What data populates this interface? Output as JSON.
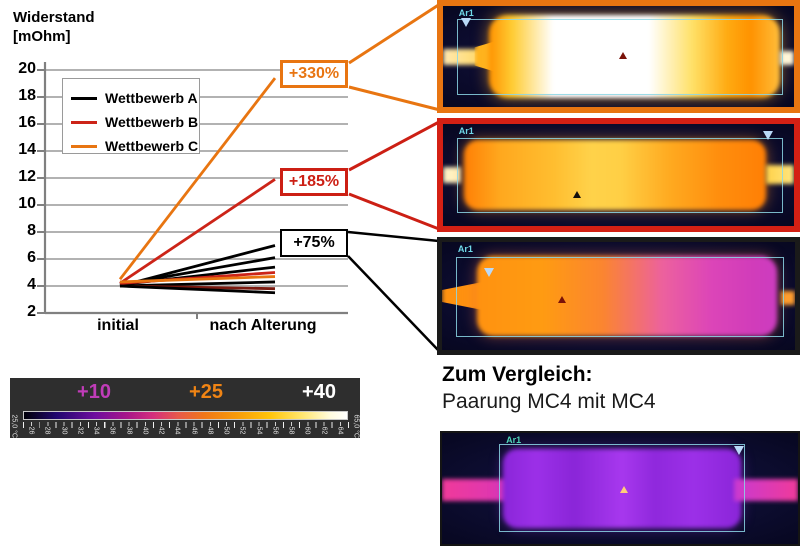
{
  "chart_data": {
    "type": "line",
    "title": "Widerstand [mOhm]",
    "title_lines": [
      "Widerstand",
      "[mOhm]"
    ],
    "categories": [
      "initial",
      "nach Alterung"
    ],
    "ylim": [
      2,
      20
    ],
    "yticks": [
      2,
      4,
      6,
      8,
      10,
      12,
      14,
      16,
      18,
      20
    ],
    "grid": true,
    "legend_position": "upper-left",
    "legend": [
      {
        "label": "Wettbewerb A",
        "color": "#000000"
      },
      {
        "label": "Wettbewerb B",
        "color": "#CC2418"
      },
      {
        "label": "Wettbewerb C",
        "color": "#E87511"
      }
    ],
    "series": [
      {
        "name": "Wettbewerb C",
        "color": "#E87511",
        "values": [
          4.5,
          19.4
        ]
      },
      {
        "name": "Wettbewerb B",
        "color": "#CC2418",
        "values": [
          4.2,
          11.9
        ]
      },
      {
        "name": "Wettbewerb A",
        "color": "#000000",
        "values": [
          4.0,
          7.0
        ]
      },
      {
        "name": "Wettbewerb A",
        "color": "#000000",
        "values": [
          4.1,
          6.1
        ]
      },
      {
        "name": "Wettbewerb A",
        "color": "#000000",
        "values": [
          4.1,
          5.4
        ]
      },
      {
        "name": "Wettbewerb B",
        "color": "#CC2418",
        "values": [
          4.2,
          5.0
        ]
      },
      {
        "name": "Wettbewerb C",
        "color": "#E87511",
        "values": [
          4.3,
          4.7
        ]
      },
      {
        "name": "Wettbewerb A",
        "color": "#000000",
        "values": [
          4.0,
          4.3
        ]
      },
      {
        "name": "Wettbewerb B",
        "color": "#7B1A10",
        "values": [
          4.0,
          3.8
        ]
      },
      {
        "name": "Wettbewerb A",
        "color": "#000000",
        "values": [
          4.0,
          3.5
        ]
      }
    ],
    "annotations": [
      {
        "label": "+330%",
        "color": "#E87511"
      },
      {
        "label": "+185%",
        "color": "#CC1F14"
      },
      {
        "label": "+75%",
        "color": "#000000"
      }
    ]
  },
  "colorbar": {
    "overlay_labels": [
      {
        "text": "+10",
        "color": "#C03CB8"
      },
      {
        "text": "+25",
        "color": "#F08414"
      },
      {
        "text": "+40",
        "color": "#FFFFFF"
      }
    ],
    "min_label": "25,0 °C",
    "max_label": "65,0 °C",
    "tick_labels": [
      "26",
      "28",
      "30",
      "32",
      "34",
      "36",
      "38",
      "40",
      "42",
      "44",
      "46",
      "48",
      "50",
      "52",
      "54",
      "56",
      "58",
      "60",
      "62",
      "64"
    ]
  },
  "thermal": {
    "images": [
      {
        "area_label": "Ar1",
        "border_color": "#E87511"
      },
      {
        "area_label": "Ar1",
        "border_color": "#D42014"
      },
      {
        "area_label": "Ar1",
        "border_color": "#1A1A1A"
      },
      {
        "area_label": "Ar1",
        "border_color": "#141414"
      }
    ]
  },
  "comparison": {
    "heading": "Zum Vergleich:",
    "subheading": "Paarung MC4 mit MC4"
  }
}
